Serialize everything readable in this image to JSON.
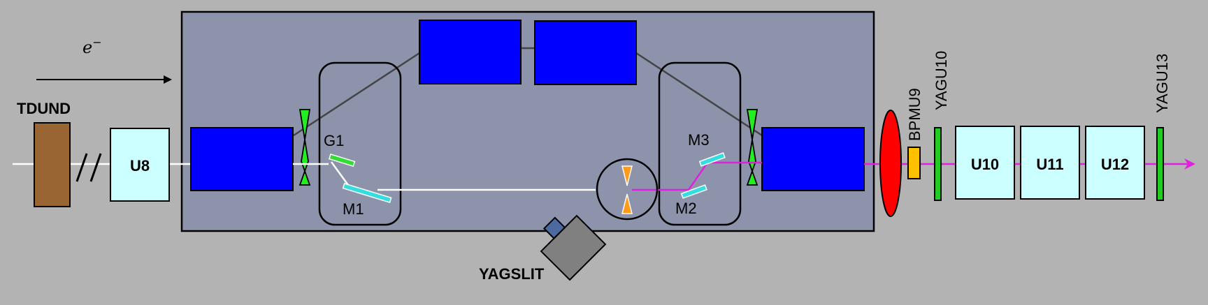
{
  "labels": {
    "electron": "e",
    "electron_sup": "−",
    "tdund": "TDUND",
    "u8": "U8",
    "g1": "G1",
    "m1": "M1",
    "m2": "M2",
    "m3": "M3",
    "yagslit": "YAGSLIT",
    "bpmu9": "BPMU9",
    "yagu10": "YAGU10",
    "u10": "U10",
    "u11": "U11",
    "u12": "U12",
    "yagu13": "YAGU13"
  },
  "colors": {
    "background": "#b3b3b3",
    "chicane_box": "#8c93aa",
    "magnet": "#0000ff",
    "undulator": "#ccffff",
    "tdund": "#996633",
    "electron_beam": "#ffffff",
    "xray_beam": "#e020e0",
    "quadrupole": "#22ee22",
    "slit": "#ff9a1a",
    "mirror": "#33dde0",
    "grating": "#33dd33",
    "yag": "#22cc22",
    "bpm": "#ffc000",
    "diagnostic_lens": "#ff0000",
    "camera": "#808080",
    "camera_lens": "#4a6aa0"
  }
}
